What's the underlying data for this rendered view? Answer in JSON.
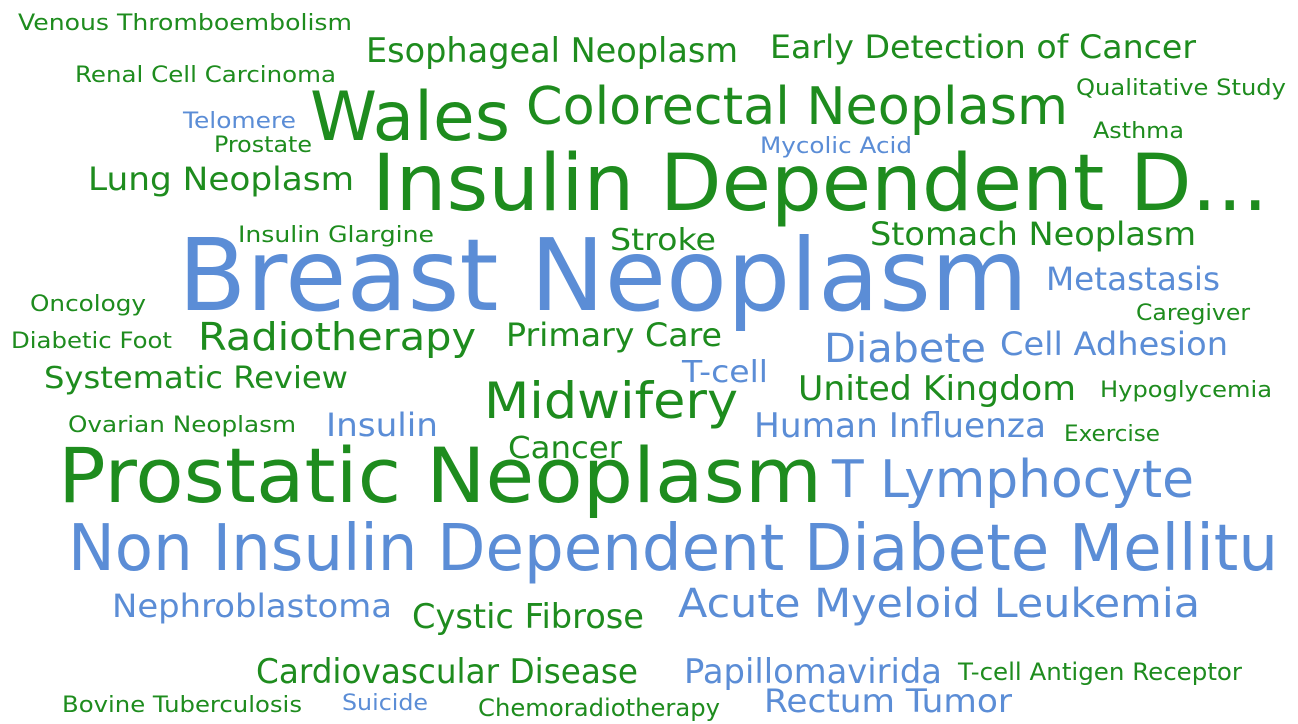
{
  "words": [
    {
      "text": "Venous Thromboembolism",
      "color": "#1e8c1e"
    },
    {
      "text": "Esophageal Neoplasm",
      "color": "#1e8c1e"
    },
    {
      "text": "Early Detection of Cancer",
      "color": "#1e8c1e"
    },
    {
      "text": "Renal Cell Carcinoma",
      "color": "#1e8c1e"
    },
    {
      "text": "Qualitative Study",
      "color": "#1e8c1e"
    },
    {
      "text": "Wales",
      "color": "#1e8c1e"
    },
    {
      "text": "Colorectal Neoplasm",
      "color": "#1e8c1e"
    },
    {
      "text": "Telomere",
      "color": "#5b8dd6"
    },
    {
      "text": "Prostate",
      "color": "#1e8c1e"
    },
    {
      "text": "Asthma",
      "color": "#1e8c1e"
    },
    {
      "text": "Mycolic Acid",
      "color": "#5b8dd6"
    },
    {
      "text": "Lung Neoplasm",
      "color": "#1e8c1e"
    },
    {
      "text": "Insulin Dependent D...",
      "color": "#1e8c1e"
    },
    {
      "text": "Insulin Glargine",
      "color": "#1e8c1e"
    },
    {
      "text": "Stroke",
      "color": "#1e8c1e"
    },
    {
      "text": "Stomach Neoplasm",
      "color": "#1e8c1e"
    },
    {
      "text": "Breast Neoplasm",
      "color": "#5b8dd6"
    },
    {
      "text": "Metastasis",
      "color": "#5b8dd6"
    },
    {
      "text": "Oncology",
      "color": "#1e8c1e"
    },
    {
      "text": "Caregiver",
      "color": "#1e8c1e"
    },
    {
      "text": "Diabetic Foot",
      "color": "#1e8c1e"
    },
    {
      "text": "Radiotherapy",
      "color": "#1e8c1e"
    },
    {
      "text": "Primary Care",
      "color": "#1e8c1e"
    },
    {
      "text": "Diabete",
      "color": "#5b8dd6"
    },
    {
      "text": "Cell Adhesion",
      "color": "#5b8dd6"
    },
    {
      "text": "Systematic Review",
      "color": "#1e8c1e"
    },
    {
      "text": "T-cell",
      "color": "#5b8dd6"
    },
    {
      "text": "United Kingdom",
      "color": "#1e8c1e"
    },
    {
      "text": "Hypoglycemia",
      "color": "#1e8c1e"
    },
    {
      "text": "Midwifery",
      "color": "#1e8c1e"
    },
    {
      "text": "Ovarian Neoplasm",
      "color": "#1e8c1e"
    },
    {
      "text": "Insulin",
      "color": "#5b8dd6"
    },
    {
      "text": "Human Influenza",
      "color": "#5b8dd6"
    },
    {
      "text": "Exercise",
      "color": "#1e8c1e"
    },
    {
      "text": "Cancer",
      "color": "#1e8c1e"
    },
    {
      "text": "Prostatic Neoplasm",
      "color": "#1e8c1e"
    },
    {
      "text": "T Lymphocyte",
      "color": "#5b8dd6"
    },
    {
      "text": "Non Insulin Dependent Diabete Mellitu",
      "color": "#5b8dd6"
    },
    {
      "text": "Nephroblastoma",
      "color": "#5b8dd6"
    },
    {
      "text": "Cystic Fibrose",
      "color": "#1e8c1e"
    },
    {
      "text": "Acute Myeloid Leukemia",
      "color": "#5b8dd6"
    },
    {
      "text": "Cardiovascular Disease",
      "color": "#1e8c1e"
    },
    {
      "text": "Papillomavirida",
      "color": "#5b8dd6"
    },
    {
      "text": "T-cell Antigen Receptor",
      "color": "#1e8c1e"
    },
    {
      "text": "Bovine Tuberculosis",
      "color": "#1e8c1e"
    },
    {
      "text": "Suicide",
      "color": "#5b8dd6"
    },
    {
      "text": "Chemoradiotherapy",
      "color": "#1e8c1e"
    },
    {
      "text": "Rectum Tumor",
      "color": "#5b8dd6"
    }
  ]
}
